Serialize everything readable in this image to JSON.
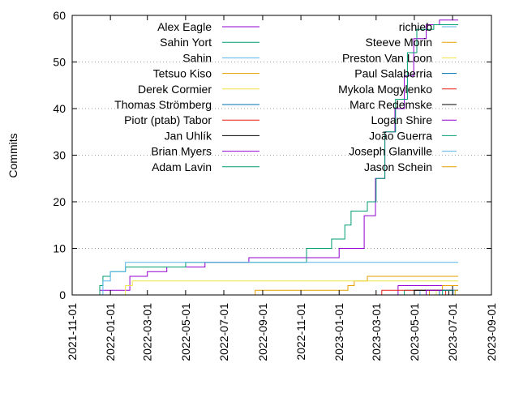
{
  "chart_data": {
    "type": "line",
    "title": "",
    "ylabel": "Commits",
    "xlabel": "",
    "x_axis": {
      "type": "date",
      "range": [
        "2021-11-01",
        "2023-09-01"
      ],
      "tick_labels": [
        "2021-11-01",
        "2022-01-01",
        "2022-03-01",
        "2022-05-01",
        "2022-07-01",
        "2022-09-01",
        "2022-11-01",
        "2023-01-01",
        "2023-03-01",
        "2023-05-01",
        "2023-07-01",
        "2023-09-01"
      ]
    },
    "y_axis": {
      "range": [
        0,
        60
      ],
      "tick_labels": [
        "0",
        "10",
        "20",
        "30",
        "40",
        "50",
        "60"
      ]
    },
    "grid": {
      "horizontal": true,
      "vertical": false,
      "style": "dotted"
    },
    "legend_placement": "top, two columns",
    "series": [
      {
        "name": "Alex Eagle",
        "color": "#9400d3",
        "points": [
          [
            "2021-12-15",
            1
          ],
          [
            "2022-01-28",
            1
          ],
          [
            "2022-02-01",
            4
          ],
          [
            "2022-03-01",
            5
          ],
          [
            "2022-04-01",
            6
          ],
          [
            "2022-06-01",
            7
          ],
          [
            "2022-08-10",
            8
          ],
          [
            "2022-11-20",
            8
          ],
          [
            "2023-01-01",
            10
          ],
          [
            "2023-02-01",
            10
          ],
          [
            "2023-02-10",
            17
          ],
          [
            "2023-02-28",
            25
          ],
          [
            "2023-03-15",
            35
          ],
          [
            "2023-03-31",
            40
          ],
          [
            "2023-04-15",
            47
          ],
          [
            "2023-04-30",
            55
          ],
          [
            "2023-05-20",
            58
          ],
          [
            "2023-06-10",
            59
          ],
          [
            "2023-07-10",
            59
          ]
        ]
      },
      {
        "name": "Sahin Yort",
        "color": "#009e73",
        "points": [
          [
            "2021-12-12",
            0
          ],
          [
            "2021-12-15",
            2
          ],
          [
            "2021-12-20",
            4
          ],
          [
            "2022-01-01",
            5
          ],
          [
            "2022-01-25",
            6
          ],
          [
            "2022-05-01",
            7
          ],
          [
            "2022-08-01",
            7
          ],
          [
            "2022-11-10",
            10
          ],
          [
            "2022-12-20",
            12
          ],
          [
            "2023-01-10",
            15
          ],
          [
            "2023-01-20",
            18
          ],
          [
            "2023-02-15",
            20
          ],
          [
            "2023-03-01",
            25
          ],
          [
            "2023-03-15",
            35
          ],
          [
            "2023-04-01",
            42
          ],
          [
            "2023-04-20",
            52
          ],
          [
            "2023-05-05",
            57
          ],
          [
            "2023-06-01",
            58
          ],
          [
            "2023-07-10",
            58
          ]
        ]
      },
      {
        "name": "Sahin",
        "color": "#56b4e9",
        "points": [
          [
            "2021-12-12",
            0
          ],
          [
            "2021-12-20",
            3
          ],
          [
            "2022-01-01",
            5
          ],
          [
            "2022-01-25",
            7
          ],
          [
            "2023-07-10",
            7
          ]
        ]
      },
      {
        "name": "Tetsuo Kiso",
        "color": "#e69f00",
        "points": [
          [
            "2022-08-15",
            0
          ],
          [
            "2022-08-20",
            1
          ],
          [
            "2023-01-15",
            2
          ],
          [
            "2023-01-25",
            3
          ],
          [
            "2023-02-15",
            4
          ],
          [
            "2023-07-10",
            4
          ]
        ]
      },
      {
        "name": "Derek Cormier",
        "color": "#f0e442",
        "points": [
          [
            "2022-01-15",
            0
          ],
          [
            "2022-01-25",
            2
          ],
          [
            "2022-02-05",
            3
          ],
          [
            "2023-07-10",
            3
          ]
        ]
      },
      {
        "name": "Thomas Strömberg",
        "color": "#0072b2",
        "points": [
          [
            "2023-06-05",
            0
          ],
          [
            "2023-06-10",
            1
          ],
          [
            "2023-07-10",
            1
          ]
        ]
      },
      {
        "name": "Piotr (ptab) Tabor",
        "color": "#e51e10",
        "points": [
          [
            "2023-06-15",
            0
          ],
          [
            "2023-06-20",
            1
          ],
          [
            "2023-07-10",
            1
          ]
        ]
      },
      {
        "name": "Jan Uhlík",
        "color": "#000000",
        "points": [
          [
            "2023-06-20",
            0
          ],
          [
            "2023-06-25",
            1
          ],
          [
            "2023-07-01",
            2
          ],
          [
            "2023-07-10",
            2
          ]
        ]
      },
      {
        "name": "Brian Myers",
        "color": "#9400d3",
        "points": [
          [
            "2023-04-01",
            0
          ],
          [
            "2023-04-05",
            2
          ],
          [
            "2023-07-10",
            2
          ]
        ]
      },
      {
        "name": "Adam Lavin",
        "color": "#009e73",
        "points": [
          [
            "2023-04-10",
            0
          ],
          [
            "2023-04-15",
            1
          ],
          [
            "2023-07-10",
            1
          ]
        ]
      },
      {
        "name": "richieb",
        "color": "#56b4e9",
        "points": [
          [
            "2023-05-05",
            0
          ],
          [
            "2023-05-10",
            1
          ],
          [
            "2023-07-10",
            1
          ]
        ]
      },
      {
        "name": "Steeve Morin",
        "color": "#e69f00",
        "points": [
          [
            "2023-05-20",
            0
          ],
          [
            "2023-05-25",
            1
          ],
          [
            "2023-06-15",
            2
          ],
          [
            "2023-07-10",
            2
          ]
        ]
      },
      {
        "name": "Preston Van Loon",
        "color": "#f0e442",
        "points": [
          [
            "2023-06-01",
            0
          ],
          [
            "2023-06-05",
            1
          ],
          [
            "2023-07-10",
            1
          ]
        ]
      },
      {
        "name": "Paul Salaberria",
        "color": "#0072b2",
        "points": [
          [
            "2023-06-25",
            0
          ],
          [
            "2023-07-01",
            1
          ],
          [
            "2023-07-10",
            1
          ]
        ]
      },
      {
        "name": "Mykola Mogylenko",
        "color": "#e51e10",
        "points": [
          [
            "2023-03-05",
            0
          ],
          [
            "2023-03-10",
            1
          ],
          [
            "2023-07-10",
            1
          ]
        ]
      },
      {
        "name": "Marc Redemske",
        "color": "#000000",
        "points": [
          [
            "2023-04-25",
            0
          ],
          [
            "2023-05-01",
            1
          ],
          [
            "2023-07-10",
            1
          ]
        ]
      },
      {
        "name": "Logan Shire",
        "color": "#9400d3",
        "points": [
          [
            "2023-05-15",
            0
          ],
          [
            "2023-05-20",
            1
          ],
          [
            "2023-07-10",
            1
          ]
        ]
      },
      {
        "name": "João Guerra",
        "color": "#009e73",
        "points": [
          [
            "2023-06-10",
            0
          ],
          [
            "2023-06-15",
            1
          ],
          [
            "2023-07-10",
            1
          ]
        ]
      },
      {
        "name": "Joseph Glanville",
        "color": "#56b4e9",
        "points": [
          [
            "2023-06-28",
            0
          ],
          [
            "2023-07-02",
            1
          ],
          [
            "2023-07-10",
            1
          ]
        ]
      },
      {
        "name": "Jason Schein",
        "color": "#e69f00",
        "points": [
          [
            "2023-07-01",
            0
          ],
          [
            "2023-07-05",
            1
          ],
          [
            "2023-07-10",
            1
          ]
        ]
      }
    ]
  }
}
